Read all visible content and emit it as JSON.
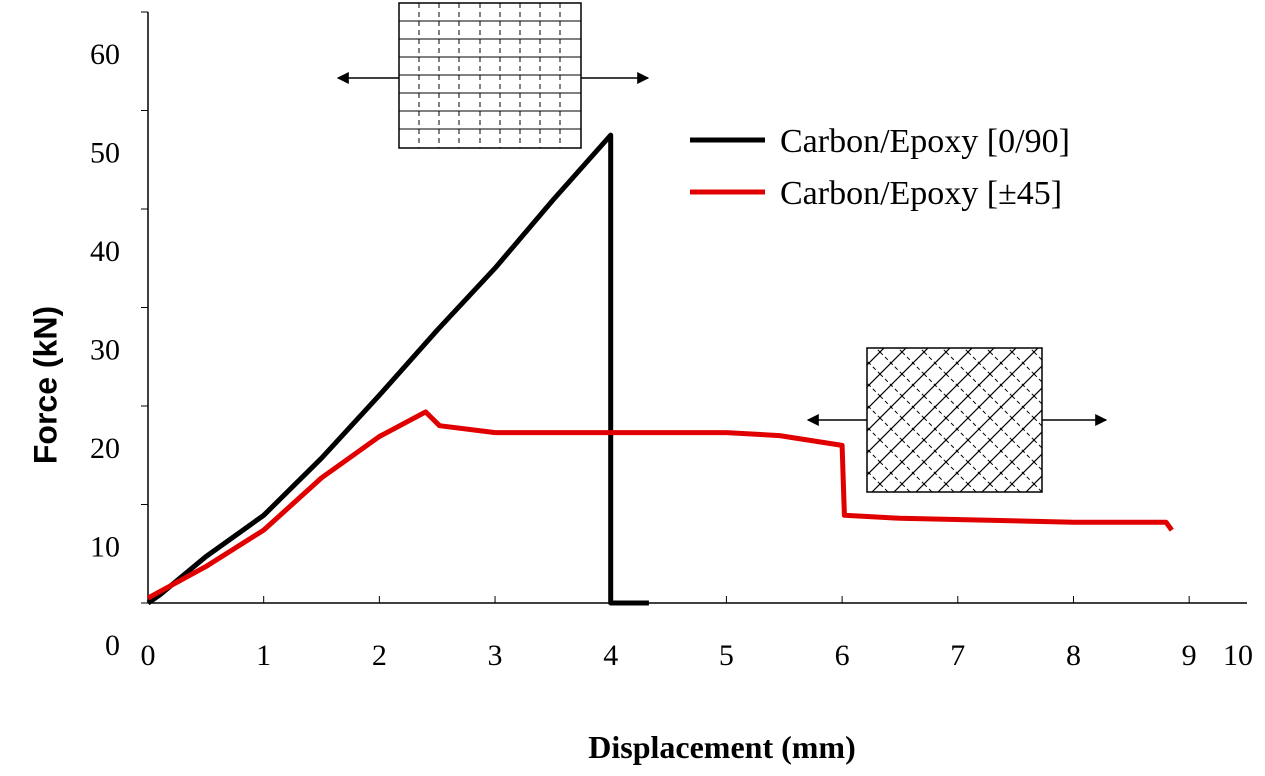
{
  "chart_data": {
    "type": "line",
    "x_label": "Displacement (mm)",
    "y_label": "Force (kN)",
    "xlim": [
      0,
      9.5
    ],
    "ylim": [
      0,
      60
    ],
    "xticks": [
      0,
      1,
      2,
      3,
      4,
      5,
      6,
      7,
      8,
      9,
      10
    ],
    "yticks": [
      0,
      10,
      20,
      30,
      40,
      50,
      60
    ],
    "grid": false,
    "legend": "upper right",
    "series": [
      {
        "name": "Carbon/Epoxy [0/90]",
        "color": "#000000",
        "x": [
          0,
          0.1,
          0.5,
          1.0,
          1.5,
          2.0,
          2.5,
          3.0,
          3.5,
          4.0,
          4.0,
          4.33
        ],
        "values": [
          0,
          0.8,
          4.7,
          8.9,
          14.7,
          21.1,
          27.7,
          34,
          40.9,
          47.5,
          0,
          0
        ]
      },
      {
        "name": "Carbon/Epoxy [±45]",
        "color": "#e00000",
        "x": [
          0,
          0.5,
          1.0,
          1.5,
          2.0,
          2.4,
          2.52,
          3.0,
          4.0,
          5.0,
          5.46,
          6.0,
          6.02,
          6.5,
          8.0,
          8.8,
          8.85
        ],
        "values": [
          0.5,
          3.7,
          7.4,
          12.7,
          16.9,
          19.4,
          18,
          17.3,
          17.3,
          17.3,
          17,
          16,
          8.9,
          8.6,
          8.2,
          8.2,
          7.4
        ]
      }
    ]
  }
}
